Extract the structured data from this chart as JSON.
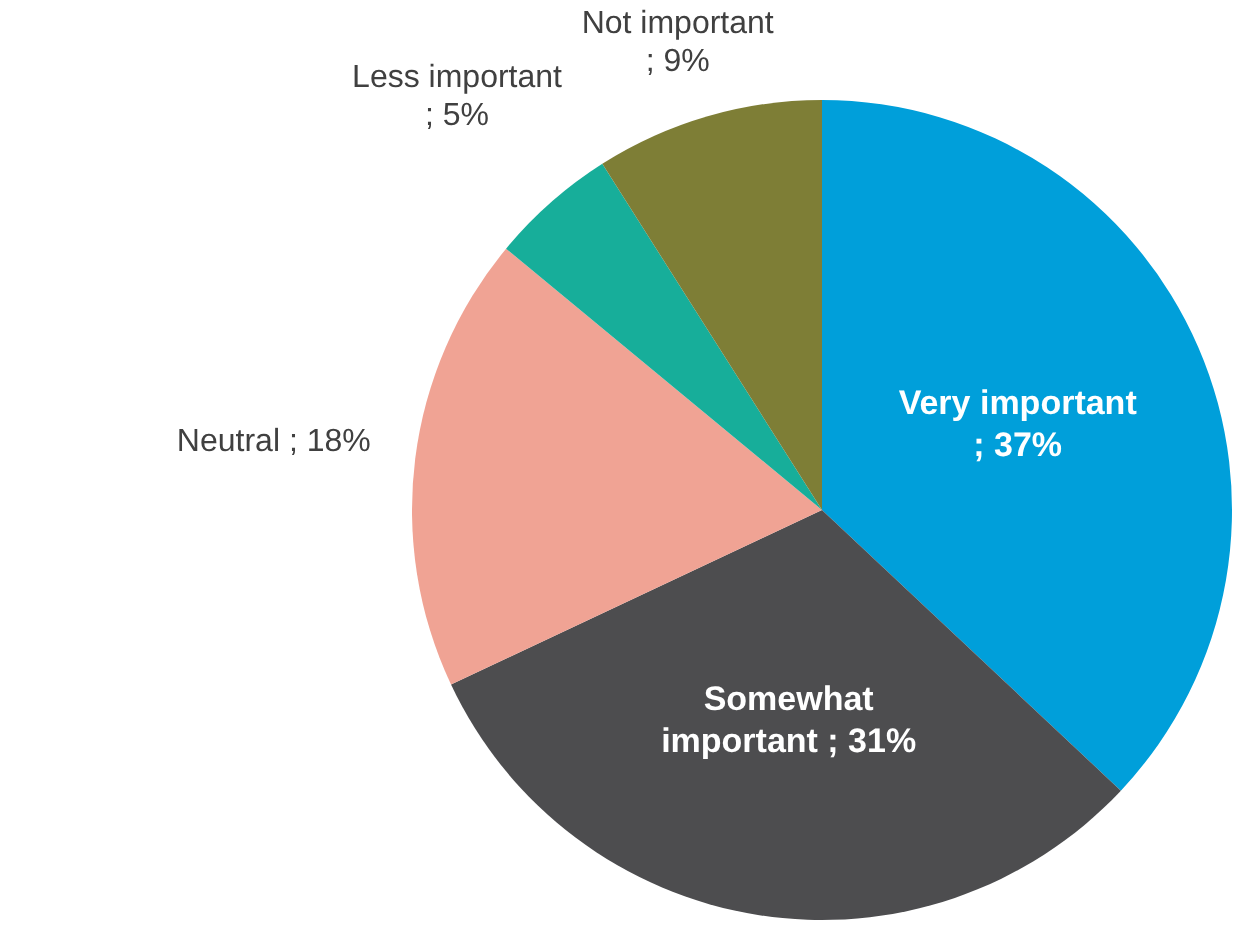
{
  "chart_data": {
    "type": "pie",
    "categories": [
      "Very important",
      "Somewhat important",
      "Neutral",
      "Less important",
      "Not important"
    ],
    "values": [
      37,
      31,
      18,
      5,
      9
    ],
    "colors": [
      "#009fda",
      "#4d4d4f",
      "#f0a394",
      "#17ae9a",
      "#7e7e36"
    ],
    "value_labels": [
      "; 37%",
      "; 31%",
      "; 18%",
      "; 5%",
      "; 9%"
    ]
  }
}
